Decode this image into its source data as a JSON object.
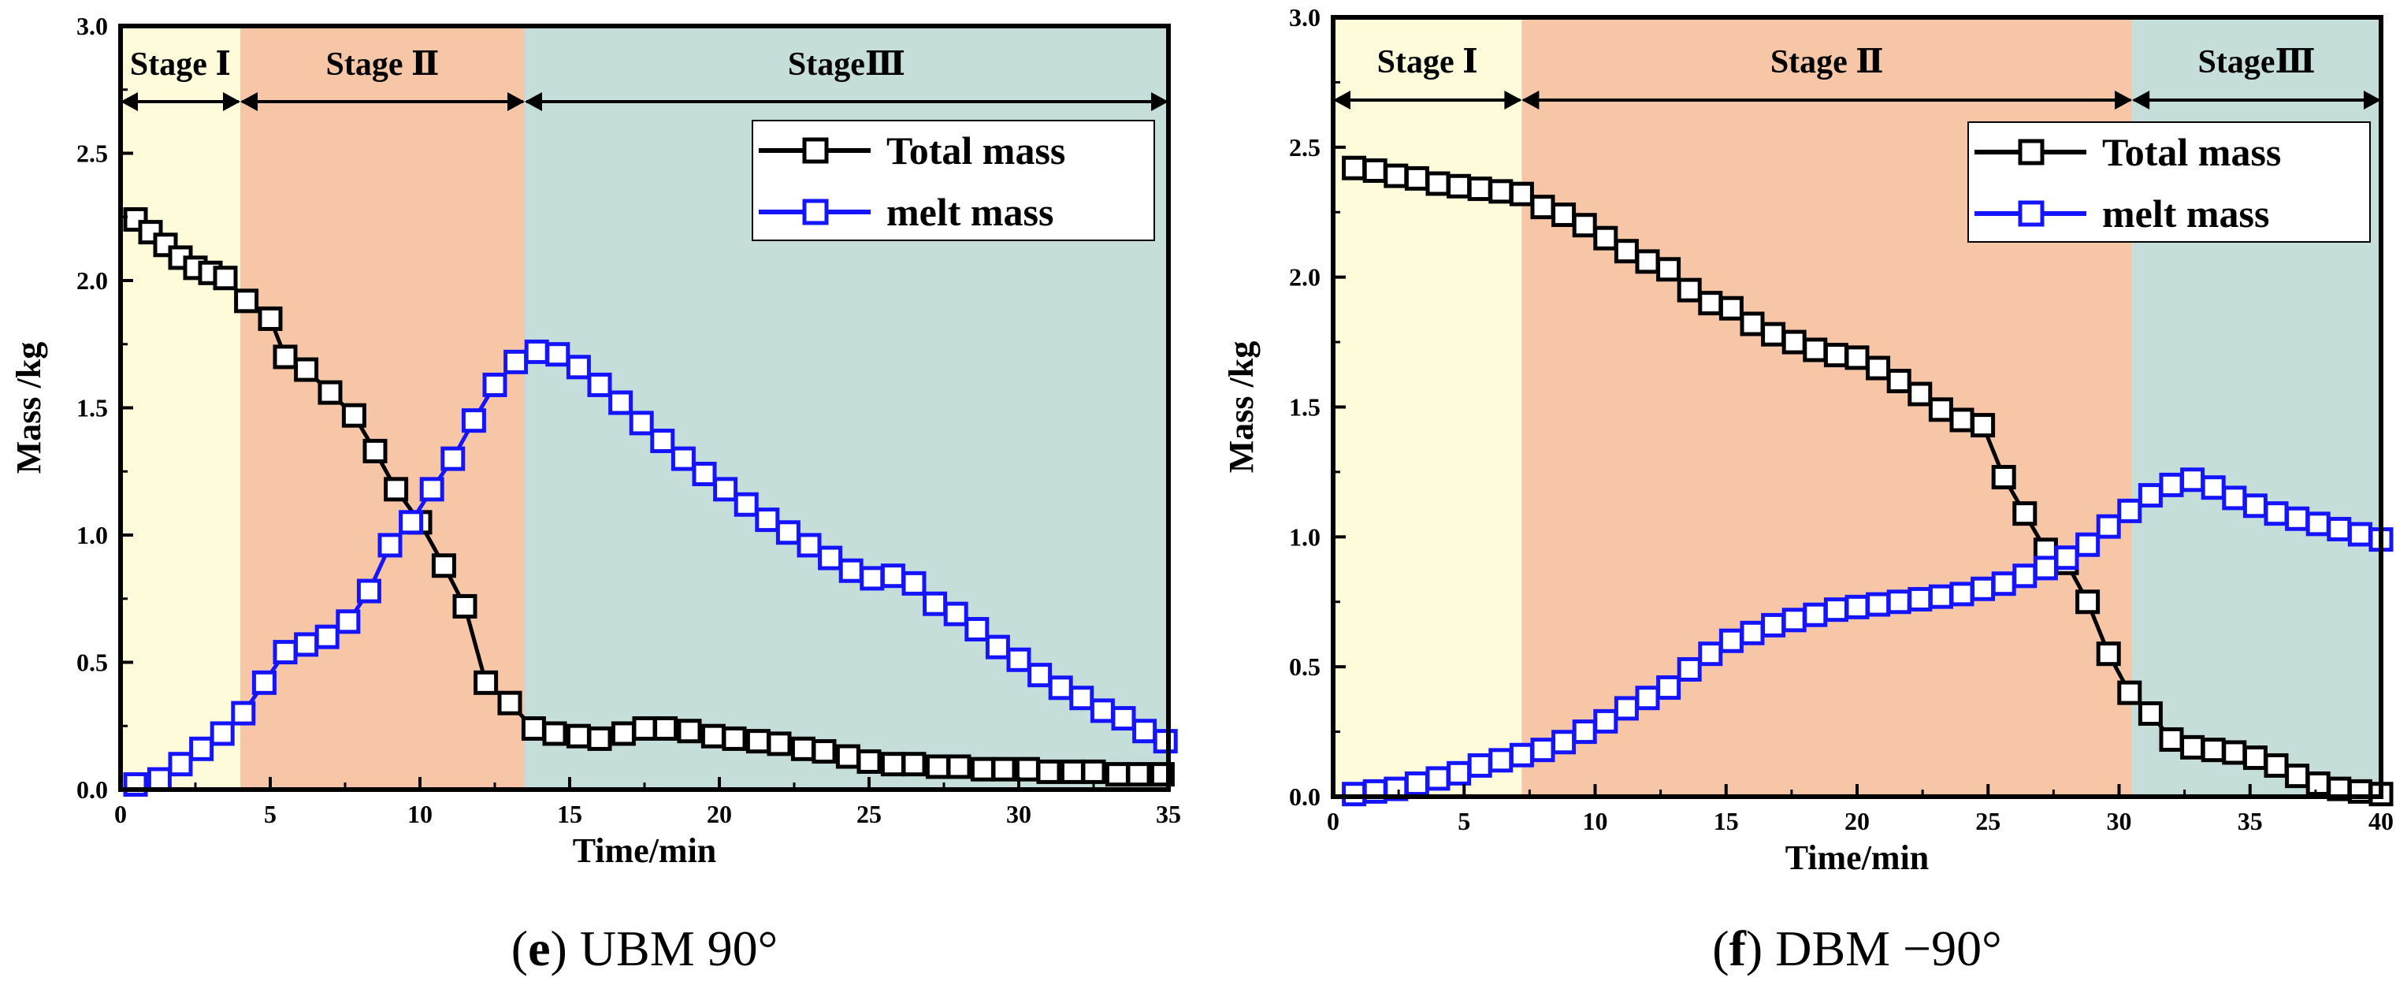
{
  "chart_data": [
    {
      "type": "line",
      "caption_letter": "e",
      "caption_text": " UBM 90°",
      "xlabel": "Time/min",
      "ylabel": "Mass /kg",
      "xlim": [
        0,
        35
      ],
      "ylim": [
        0,
        3.0
      ],
      "xticks": [
        "0",
        "5",
        "10",
        "15",
        "20",
        "25",
        "30",
        "35"
      ],
      "yticks": [
        "0.0",
        "0.5",
        "1.0",
        "1.5",
        "2.0",
        "2.5",
        "3.0"
      ],
      "grid": false,
      "legend_position": "top-right",
      "stages": [
        {
          "label": "Stage Ⅰ",
          "start": 0,
          "end": 4.0,
          "color": "#FDFBDA"
        },
        {
          "label": "Stage Ⅱ",
          "start": 4.0,
          "end": 13.5,
          "color": "#F7C6A6"
        },
        {
          "label": "StageⅢ",
          "start": 13.5,
          "end": 35,
          "color": "#C5DEDA"
        }
      ],
      "series": [
        {
          "name": "Total mass",
          "color": "#000000",
          "x": [
            0.5,
            1.0,
            1.5,
            2.0,
            2.5,
            3.0,
            3.5,
            4.2,
            5.0,
            5.5,
            6.2,
            7.0,
            7.8,
            8.5,
            9.2,
            10.0,
            10.8,
            11.5,
            12.2,
            13.0,
            13.8,
            14.5,
            15.3,
            16.0,
            16.8,
            17.5,
            18.2,
            19.0,
            19.8,
            20.5,
            21.3,
            22.0,
            22.8,
            23.5,
            24.3,
            25.0,
            25.8,
            26.5,
            27.3,
            28.0,
            28.8,
            29.5,
            30.3,
            31.0,
            31.8,
            32.5,
            33.3,
            34.0,
            34.8
          ],
          "y": [
            2.24,
            2.19,
            2.14,
            2.09,
            2.05,
            2.03,
            2.01,
            1.92,
            1.85,
            1.7,
            1.65,
            1.56,
            1.47,
            1.33,
            1.18,
            1.05,
            0.88,
            0.72,
            0.42,
            0.34,
            0.24,
            0.22,
            0.21,
            0.2,
            0.22,
            0.24,
            0.24,
            0.23,
            0.21,
            0.2,
            0.19,
            0.18,
            0.16,
            0.15,
            0.13,
            0.11,
            0.1,
            0.1,
            0.09,
            0.09,
            0.08,
            0.08,
            0.08,
            0.07,
            0.07,
            0.07,
            0.06,
            0.06,
            0.06
          ]
        },
        {
          "name": "melt mass",
          "color": "#1414FF",
          "x": [
            0.5,
            1.3,
            2.0,
            2.7,
            3.4,
            4.1,
            4.8,
            5.5,
            6.2,
            6.9,
            7.6,
            8.3,
            9.0,
            9.7,
            10.4,
            11.1,
            11.8,
            12.5,
            13.2,
            13.9,
            14.6,
            15.3,
            16.0,
            16.7,
            17.4,
            18.1,
            18.8,
            19.5,
            20.2,
            20.9,
            21.6,
            22.3,
            23.0,
            23.7,
            24.4,
            25.1,
            25.8,
            26.5,
            27.2,
            27.9,
            28.6,
            29.3,
            30.0,
            30.7,
            31.4,
            32.1,
            32.8,
            33.5,
            34.2,
            34.9
          ],
          "y": [
            0.02,
            0.04,
            0.1,
            0.16,
            0.22,
            0.3,
            0.42,
            0.54,
            0.57,
            0.6,
            0.66,
            0.78,
            0.96,
            1.05,
            1.18,
            1.3,
            1.45,
            1.59,
            1.68,
            1.72,
            1.71,
            1.66,
            1.59,
            1.52,
            1.44,
            1.37,
            1.3,
            1.24,
            1.18,
            1.12,
            1.06,
            1.01,
            0.96,
            0.91,
            0.86,
            0.83,
            0.84,
            0.81,
            0.73,
            0.69,
            0.63,
            0.56,
            0.51,
            0.45,
            0.4,
            0.36,
            0.31,
            0.28,
            0.23,
            0.19
          ]
        }
      ]
    },
    {
      "type": "line",
      "caption_letter": "f",
      "caption_text": " DBM −90°",
      "xlabel": "Time/min",
      "ylabel": "Mass /kg",
      "xlim": [
        0,
        40
      ],
      "ylim": [
        0,
        3.0
      ],
      "xticks": [
        "0",
        "5",
        "10",
        "15",
        "20",
        "25",
        "30",
        "35",
        "40"
      ],
      "yticks": [
        "0.0",
        "0.5",
        "1.0",
        "1.5",
        "2.0",
        "2.5",
        "3.0"
      ],
      "grid": false,
      "legend_position": "top-right",
      "stages": [
        {
          "label": "Stage Ⅰ",
          "start": 0,
          "end": 7.2,
          "color": "#FDFBDA"
        },
        {
          "label": "Stage Ⅱ",
          "start": 7.2,
          "end": 30.5,
          "color": "#F7C6A6"
        },
        {
          "label": "StageⅢ",
          "start": 30.5,
          "end": 40,
          "color": "#C5DEDA"
        }
      ],
      "series": [
        {
          "name": "Total mass",
          "color": "#000000",
          "x": [
            0.8,
            1.6,
            2.4,
            3.2,
            4.0,
            4.8,
            5.6,
            6.4,
            7.2,
            8.0,
            8.8,
            9.6,
            10.4,
            11.2,
            12.0,
            12.8,
            13.6,
            14.4,
            15.2,
            16.0,
            16.8,
            17.6,
            18.4,
            19.2,
            20.0,
            20.8,
            21.6,
            22.4,
            23.2,
            24.0,
            24.8,
            25.6,
            26.4,
            27.2,
            28.0,
            28.8,
            29.6,
            30.4,
            31.2,
            32.0,
            32.8,
            33.6,
            34.4,
            35.2,
            36.0,
            36.8,
            37.6,
            38.4,
            39.2,
            40.0
          ],
          "y": [
            2.42,
            2.41,
            2.39,
            2.38,
            2.36,
            2.35,
            2.34,
            2.33,
            2.32,
            2.27,
            2.24,
            2.2,
            2.15,
            2.1,
            2.06,
            2.03,
            1.95,
            1.9,
            1.88,
            1.82,
            1.78,
            1.75,
            1.72,
            1.7,
            1.69,
            1.65,
            1.6,
            1.55,
            1.49,
            1.45,
            1.43,
            1.23,
            1.09,
            0.95,
            0.9,
            0.75,
            0.55,
            0.4,
            0.32,
            0.22,
            0.19,
            0.18,
            0.17,
            0.15,
            0.12,
            0.08,
            0.05,
            0.03,
            0.02,
            0.01
          ]
        },
        {
          "name": "melt mass",
          "color": "#1414FF",
          "x": [
            0.8,
            1.6,
            2.4,
            3.2,
            4.0,
            4.8,
            5.6,
            6.4,
            7.2,
            8.0,
            8.8,
            9.6,
            10.4,
            11.2,
            12.0,
            12.8,
            13.6,
            14.4,
            15.2,
            16.0,
            16.8,
            17.6,
            18.4,
            19.2,
            20.0,
            20.8,
            21.6,
            22.4,
            23.2,
            24.0,
            24.8,
            25.6,
            26.4,
            27.2,
            28.0,
            28.8,
            29.6,
            30.4,
            31.2,
            32.0,
            32.8,
            33.6,
            34.4,
            35.2,
            36.0,
            36.8,
            37.6,
            38.4,
            39.2,
            40.0
          ],
          "y": [
            0.01,
            0.02,
            0.03,
            0.05,
            0.07,
            0.09,
            0.12,
            0.14,
            0.16,
            0.18,
            0.21,
            0.25,
            0.29,
            0.34,
            0.38,
            0.42,
            0.49,
            0.55,
            0.6,
            0.63,
            0.66,
            0.68,
            0.7,
            0.72,
            0.73,
            0.74,
            0.75,
            0.76,
            0.77,
            0.78,
            0.8,
            0.82,
            0.85,
            0.88,
            0.92,
            0.97,
            1.04,
            1.1,
            1.16,
            1.2,
            1.22,
            1.19,
            1.15,
            1.12,
            1.09,
            1.07,
            1.05,
            1.03,
            1.01,
            0.99
          ]
        }
      ]
    }
  ]
}
